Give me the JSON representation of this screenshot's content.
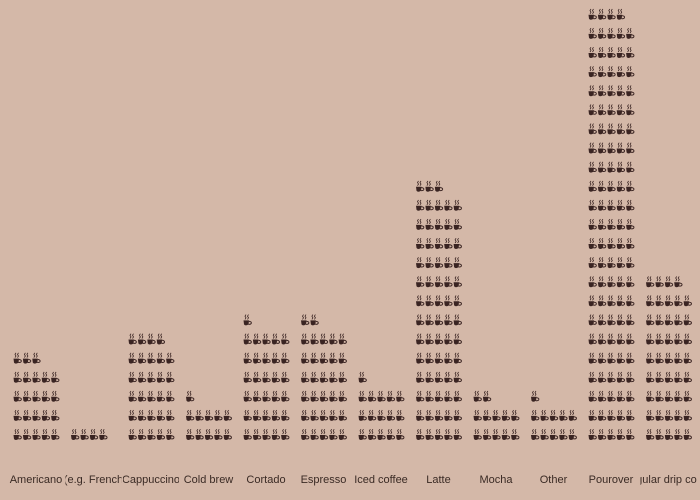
{
  "chart_data": {
    "type": "pictogram",
    "icon": "coffee-cup-icon",
    "cups_per_row": 5,
    "categories": [
      "Americano",
      "Blend (e.g. French roast)",
      "Cappuccino",
      "Cold brew",
      "Cortado",
      "Espresso",
      "Iced coffee",
      "Latte",
      "Mocha",
      "Other",
      "Pourover",
      "Regular drip coffee"
    ],
    "values": [
      23,
      4,
      29,
      11,
      31,
      32,
      16,
      68,
      12,
      11,
      114,
      44
    ],
    "title": "",
    "xlabel": "",
    "ylabel": "",
    "grid": false,
    "legend": "none"
  },
  "colors": {
    "background": "#d4b8a8",
    "cup": "#3a2422",
    "steam": "#3a2422",
    "label": "#3a2a24"
  }
}
